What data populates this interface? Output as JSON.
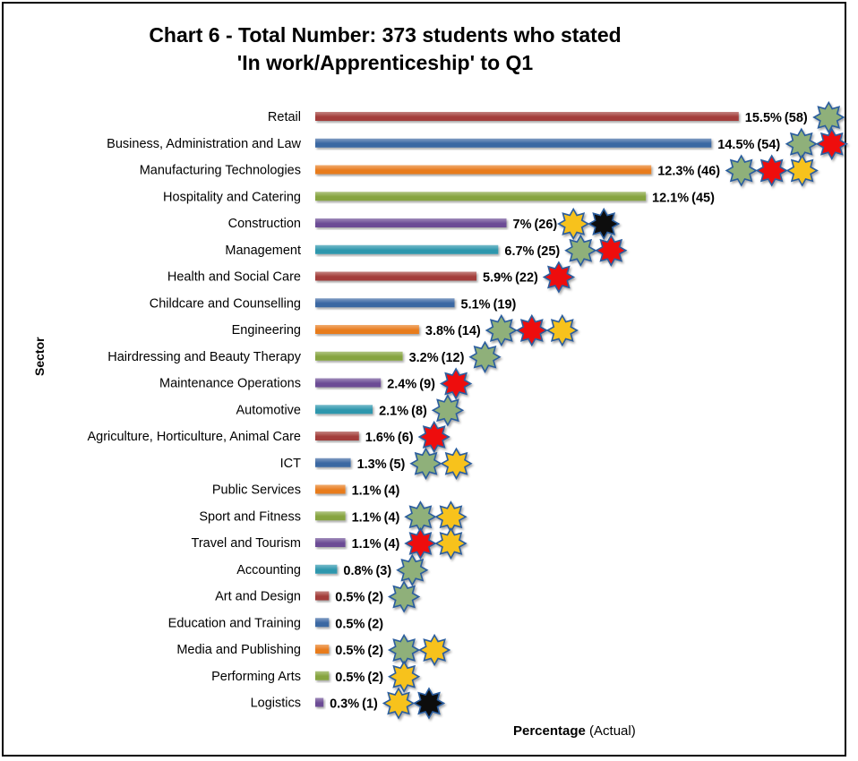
{
  "chart_data": {
    "type": "bar",
    "orientation": "horizontal",
    "title_lines": [
      "Chart 6 - Total Number: 373 students who stated",
      "'In work/Apprenticeship' to Q1"
    ],
    "ylabel": "Sector",
    "xlabel_bold": "Percentage",
    "xlabel_rest": " (Actual)",
    "categories": [
      "Retail",
      "Business, Administration and Law",
      "Manufacturing Technologies",
      "Hospitality and Catering",
      "Construction",
      "Management",
      "Health and Social Care",
      "Childcare and Counselling",
      "Engineering",
      "Hairdressing and Beauty Therapy",
      "Maintenance Operations",
      "Automotive",
      "Agriculture, Horticulture, Animal Care",
      "ICT",
      "Public Services",
      "Sport and Fitness",
      "Travel and Tourism",
      "Accounting",
      "Art and Design",
      "Education and Training",
      "Media and Publishing",
      "Performing Arts",
      "Logistics"
    ],
    "values": [
      15.5,
      14.5,
      12.3,
      12.1,
      7,
      6.7,
      5.9,
      5.1,
      3.8,
      3.2,
      2.4,
      2.1,
      1.6,
      1.3,
      1.1,
      1.1,
      1.1,
      0.8,
      0.5,
      0.5,
      0.5,
      0.5,
      0.3
    ],
    "percent_labels": [
      "15.5%",
      "14.5%",
      "12.3%",
      "12.1%",
      "7%",
      "6.7%",
      "5.9%",
      "5.1%",
      "3.8%",
      "3.2%",
      "2.4%",
      "2.1%",
      "1.6%",
      "1.3%",
      "1.1%",
      "1.1%",
      "1.1%",
      "0.8%",
      "0.5%",
      "0.5%",
      "0.5%",
      "0.5%",
      "0.3%"
    ],
    "counts": [
      58,
      54,
      46,
      45,
      26,
      25,
      22,
      19,
      14,
      12,
      9,
      8,
      6,
      5,
      4,
      4,
      4,
      3,
      2,
      2,
      2,
      2,
      1
    ],
    "count_labels": [
      "(58)",
      "(54)",
      "(46)",
      "(45)",
      "(26)",
      "(25)",
      "(22)",
      "(19)",
      "(14)",
      "(12)",
      "(9)",
      "(8)",
      "(6)",
      "(5)",
      "(4)",
      "(4)",
      "(4)",
      "(3)",
      "(2)",
      "(2)",
      "(2)",
      "(2)",
      "(1)"
    ],
    "bar_colors": [
      "#a33e3a",
      "#3b67a2",
      "#e87c1f",
      "#86a43f",
      "#6c4c95",
      "#2e97ad",
      "#a33e3a",
      "#3b67a2",
      "#e87c1f",
      "#86a43f",
      "#6c4c95",
      "#2e97ad",
      "#a33e3a",
      "#3b67a2",
      "#e87c1f",
      "#86a43f",
      "#6c4c95",
      "#2e97ad",
      "#a33e3a",
      "#3b67a2",
      "#e87c1f",
      "#86a43f",
      "#6c4c95"
    ],
    "star_markers": [
      [
        "green"
      ],
      [
        "green",
        "red"
      ],
      [
        "green",
        "red",
        "gold"
      ],
      [],
      [
        "gold",
        "black"
      ],
      [
        "green",
        "red"
      ],
      [
        "red"
      ],
      [],
      [
        "green",
        "red",
        "gold"
      ],
      [
        "green"
      ],
      [
        "red"
      ],
      [
        "green"
      ],
      [
        "red"
      ],
      [
        "green",
        "gold"
      ],
      [],
      [
        "green",
        "gold"
      ],
      [
        "red",
        "gold"
      ],
      [
        "green"
      ],
      [
        "green"
      ],
      [],
      [
        "green",
        "gold"
      ],
      [
        "gold"
      ],
      [
        "gold",
        "black"
      ]
    ],
    "star_colors": {
      "green": "#8fb07a",
      "red": "#ee1111",
      "gold": "#f7c21a",
      "black": "#0a0a0a"
    },
    "grid": false,
    "legend": "none"
  }
}
